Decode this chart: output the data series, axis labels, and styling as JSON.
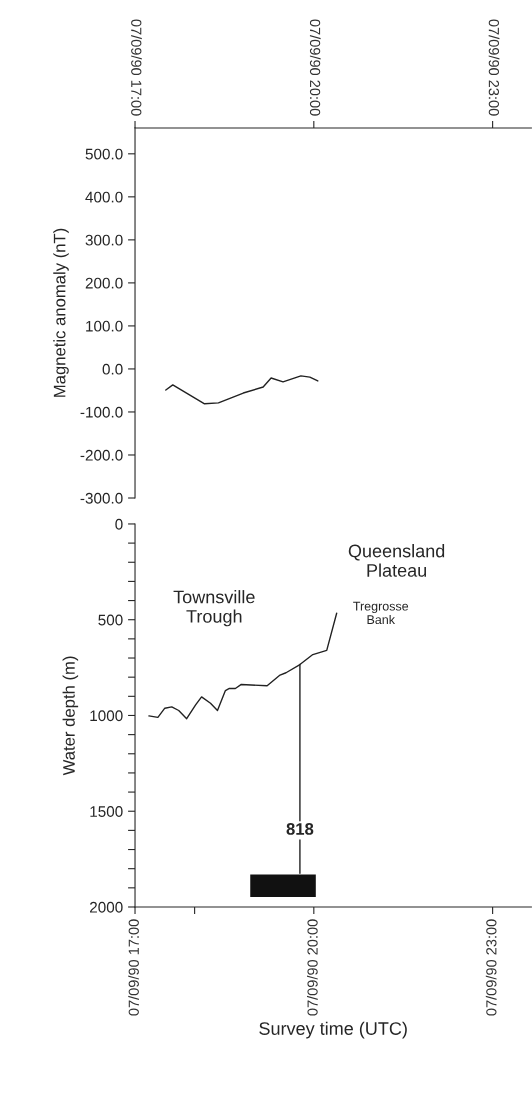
{
  "chart_data": [
    {
      "type": "line",
      "ylabel": "Magnetic anomaly (nT)",
      "xlim": [
        "1990-09-07T17:00",
        "1990-09-07T23:39"
      ],
      "xticks": [
        {
          "value": "1990-09-07T17:00",
          "label": "07/09/90 17:00"
        },
        {
          "value": "1990-09-07T20:00",
          "label": "07/09/90 20:00"
        },
        {
          "value": "1990-09-07T23:00",
          "label": "07/09/90 23:00"
        }
      ],
      "ylim": [
        -300,
        560
      ],
      "yticks": [
        {
          "value": -300,
          "label": "-300.0"
        },
        {
          "value": -200,
          "label": "-200.0"
        },
        {
          "value": -100,
          "label": "-100.0"
        },
        {
          "value": 0,
          "label": "0.0"
        },
        {
          "value": 100,
          "label": "100.0"
        },
        {
          "value": 200,
          "label": "200.0"
        },
        {
          "value": 300,
          "label": "300.0"
        },
        {
          "value": 400,
          "label": "400.0"
        },
        {
          "value": 500,
          "label": "500.0"
        }
      ],
      "series": [
        {
          "color": "#222222",
          "x": [
            "1990-09-07T17:31",
            "1990-09-07T17:38",
            "1990-09-07T18:10",
            "1990-09-07T18:24",
            "1990-09-07T18:49",
            "1990-09-07T19:09",
            "1990-09-07T19:17",
            "1990-09-07T19:29",
            "1990-09-07T19:47",
            "1990-09-07T19:56",
            "1990-09-07T20:04"
          ],
          "values": [
            -49,
            -37,
            -81,
            -79,
            -56,
            -42,
            -21,
            -30,
            -16,
            -19,
            -28
          ]
        }
      ]
    },
    {
      "type": "line",
      "xlabel": "Survey time (UTC)",
      "ylabel": "Water depth (m)",
      "xlim": [
        "1990-09-07T17:00",
        "1990-09-07T23:39"
      ],
      "xticks": [
        {
          "value": "1990-09-07T17:00",
          "label": "07/09/90 17:00"
        },
        {
          "value": "1990-09-07T18:00",
          "label": null
        },
        {
          "value": "1990-09-07T20:00",
          "label": "07/09/90 20:00"
        },
        {
          "value": "1990-09-07T23:00",
          "label": "07/09/90 23:00"
        }
      ],
      "ylim": [
        2000,
        0
      ],
      "yticks": [
        0,
        {
          "value": 100,
          "label": null
        },
        {
          "value": 200,
          "label": null
        },
        {
          "value": 300,
          "label": null
        },
        {
          "value": 400,
          "label": null
        },
        500,
        {
          "value": 600,
          "label": null
        },
        {
          "value": 700,
          "label": null
        },
        {
          "value": 800,
          "label": null
        },
        {
          "value": 900,
          "label": null
        },
        1000,
        {
          "value": 1100,
          "label": null
        },
        {
          "value": 1200,
          "label": null
        },
        {
          "value": 1300,
          "label": null
        },
        {
          "value": 1400,
          "label": null
        },
        1500,
        {
          "value": 1600,
          "label": null
        },
        {
          "value": 1700,
          "label": null
        },
        {
          "value": 1800,
          "label": null
        },
        {
          "value": 1900,
          "label": null
        },
        2000
      ],
      "series": [
        {
          "color": "#222222",
          "x": [
            "1990-09-07T17:14",
            "1990-09-07T17:23",
            "1990-09-07T17:30",
            "1990-09-07T17:37",
            "1990-09-07T17:44",
            "1990-09-07T17:52",
            "1990-09-07T18:01",
            "1990-09-07T18:07",
            "1990-09-07T18:16",
            "1990-09-07T18:23",
            "1990-09-07T18:31",
            "1990-09-07T18:35",
            "1990-09-07T18:41",
            "1990-09-07T18:47",
            "1990-09-07T19:13",
            "1990-09-07T19:26",
            "1990-09-07T19:32",
            "1990-09-07T19:46",
            "1990-09-07T19:59",
            "1990-09-07T20:13",
            "1990-09-07T20:23"
          ],
          "values": [
            1002,
            1010,
            962,
            955,
            974,
            1017,
            945,
            903,
            936,
            974,
            870,
            859,
            859,
            838,
            845,
            789,
            777,
            734,
            682,
            660,
            466
          ]
        },
        {
          "color": "#222222",
          "x": [
            "1990-09-07T19:46",
            "1990-09-07T19:46"
          ],
          "values": [
            734,
            1824
          ]
        }
      ],
      "bands": [
        {
          "axis": "x",
          "from": "1990-09-07T18:56",
          "to": "1990-09-07T20:02",
          "color": "#111111"
        }
      ],
      "annotations": [
        "Queensland\nPlateau",
        "Townsville\nTrough",
        "Tregrosse\nBank",
        {
          "text": "818",
          "x": "1990-09-07T19:46",
          "y": 1600
        }
      ]
    }
  ]
}
